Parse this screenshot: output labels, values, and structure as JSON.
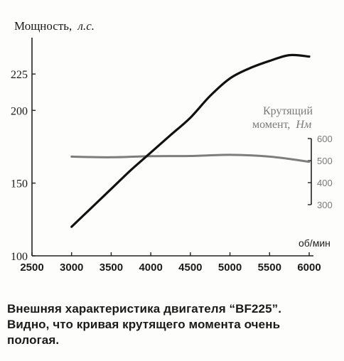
{
  "chart_data": {
    "type": "line",
    "title": "",
    "xlabel": "об/мин",
    "ylabel": "Мощность,",
    "ylabel_unit": "л.с.",
    "x_ticks": [
      "2500",
      "3000",
      "3500",
      "4000",
      "4500",
      "5000",
      "5500",
      "6000"
    ],
    "xlim": [
      2500,
      6000
    ],
    "y_ticks": [
      "100",
      "150",
      "200",
      "225"
    ],
    "ylim": [
      100,
      250
    ],
    "y2label_line1": "Крутящий",
    "y2label_line2": "момент,",
    "y2label_unit": "Нм",
    "y2_ticks": [
      "300",
      "400",
      "500",
      "600"
    ],
    "y2lim": [
      300,
      600
    ],
    "grid": false,
    "colors": {
      "power": "#111111",
      "torque": "#7d7d7d",
      "axis": "#222222"
    },
    "series": [
      {
        "key": "power",
        "axis": "left",
        "x": [
          3000,
          3250,
          3500,
          3750,
          4000,
          4250,
          4500,
          4750,
          5000,
          5250,
          5500,
          5750,
          6000
        ],
        "values": [
          120,
          133,
          146,
          159,
          171,
          183,
          195,
          210,
          222,
          229,
          234,
          238,
          237
        ]
      },
      {
        "key": "torque",
        "axis": "right",
        "x": [
          3000,
          3500,
          4000,
          4500,
          5000,
          5500,
          6000
        ],
        "values": [
          518,
          515,
          520,
          521,
          526,
          518,
          495
        ]
      }
    ]
  },
  "caption": {
    "line1": "Внешняя характеристика двигателя “BF225”.",
    "line2": "Видно, что кривая крутящего момента очень",
    "line3": "пологая."
  }
}
